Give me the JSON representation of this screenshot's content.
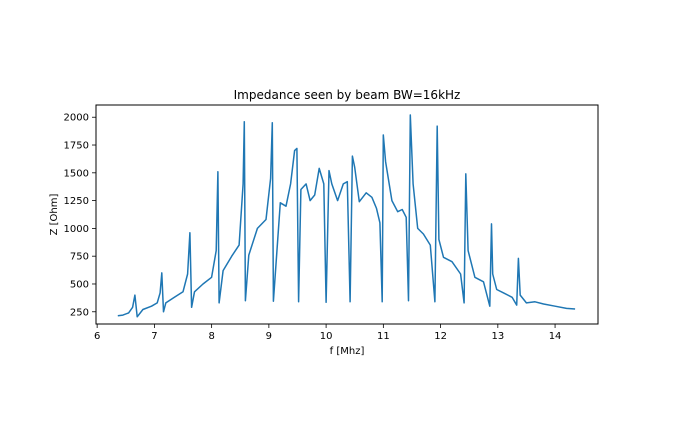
{
  "chart_data": {
    "type": "line",
    "title": "Impedance seen by beam BW=16kHz",
    "xlabel": "f [Mhz]",
    "ylabel": "Z [Ohm]",
    "xlim": [
      5.98,
      14.75
    ],
    "ylim": [
      140,
      2110
    ],
    "xticks": [
      6,
      7,
      8,
      9,
      10,
      11,
      12,
      13,
      14
    ],
    "xtick_labels": [
      "6",
      "7",
      "8",
      "9",
      "10",
      "11",
      "12",
      "13",
      "14"
    ],
    "yticks": [
      250,
      500,
      750,
      1000,
      1250,
      1500,
      1750,
      2000
    ],
    "ytick_labels": [
      "250",
      "500",
      "750",
      "1000",
      "1250",
      "1500",
      "1750",
      "2000"
    ],
    "grid": false,
    "colors": {
      "line": "#1f77b4"
    },
    "series": [
      {
        "x": [
          6.36,
          6.45,
          6.55,
          6.62,
          6.66,
          6.7,
          6.8,
          6.95,
          7.05,
          7.1,
          7.13,
          7.16,
          7.2,
          7.35,
          7.5,
          7.58,
          7.62,
          7.65,
          7.7,
          7.85,
          8.0,
          8.08,
          8.11,
          8.13,
          8.2,
          8.35,
          8.48,
          8.55,
          8.57,
          8.59,
          8.65,
          8.8,
          8.95,
          9.03,
          9.06,
          9.08,
          9.2,
          9.3,
          9.38,
          9.45,
          9.49,
          9.52,
          9.56,
          9.65,
          9.72,
          9.8,
          9.88,
          9.96,
          10.0,
          10.05,
          10.1,
          10.2,
          10.3,
          10.37,
          10.42,
          10.46,
          10.5,
          10.58,
          10.7,
          10.8,
          10.88,
          10.94,
          10.98,
          11.0,
          11.04,
          11.15,
          11.25,
          11.33,
          11.4,
          11.44,
          11.47,
          11.52,
          11.6,
          11.7,
          11.82,
          11.9,
          11.94,
          11.97,
          12.05,
          12.2,
          12.35,
          12.41,
          12.44,
          12.48,
          12.6,
          12.75,
          12.86,
          12.89,
          12.91,
          12.98,
          13.1,
          13.25,
          13.33,
          13.36,
          13.39,
          13.5,
          13.65,
          13.8,
          14.0,
          14.2,
          14.35
        ],
        "y": [
          215,
          220,
          240,
          290,
          400,
          205,
          270,
          300,
          330,
          420,
          600,
          250,
          330,
          380,
          430,
          590,
          960,
          290,
          430,
          500,
          560,
          800,
          1510,
          330,
          620,
          750,
          850,
          1400,
          1960,
          350,
          760,
          1000,
          1080,
          1450,
          1950,
          345,
          1230,
          1200,
          1400,
          1700,
          1720,
          340,
          1350,
          1400,
          1250,
          1300,
          1540,
          1400,
          335,
          1520,
          1400,
          1250,
          1400,
          1420,
          340,
          1650,
          1550,
          1240,
          1320,
          1280,
          1180,
          1050,
          340,
          1840,
          1600,
          1250,
          1150,
          1170,
          1100,
          350,
          2020,
          1400,
          1000,
          950,
          850,
          340,
          1920,
          900,
          740,
          700,
          590,
          330,
          1490,
          800,
          560,
          520,
          300,
          1040,
          590,
          450,
          420,
          380,
          310,
          730,
          400,
          330,
          340,
          320,
          300,
          280,
          275
        ]
      }
    ]
  }
}
